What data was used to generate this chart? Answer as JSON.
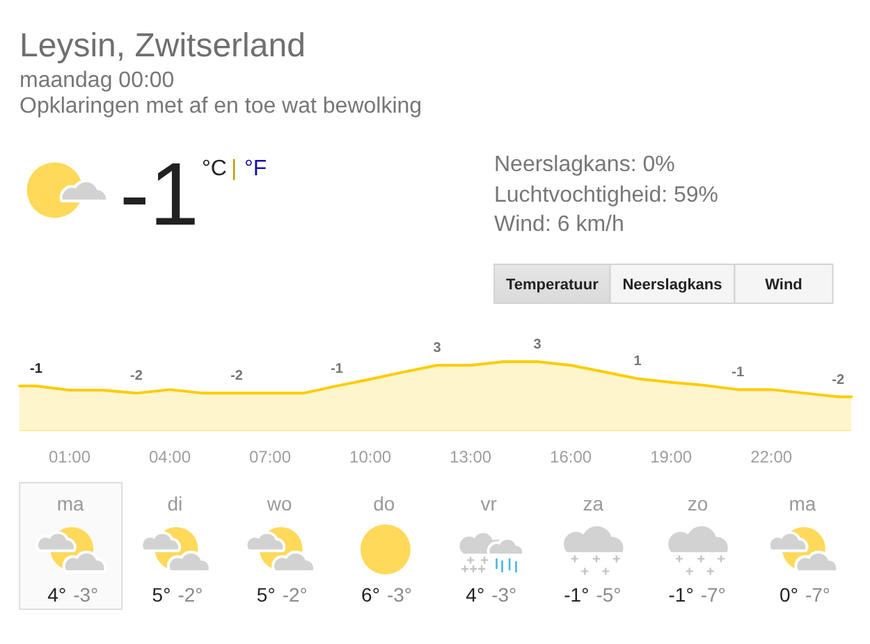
{
  "chart_data": [
    {
      "type": "other",
      "title": "Leysin, Zwitserland",
      "subtitle": "maandag 00:00",
      "annotations": [
        "Opklaringen met af en toe wat bewolking",
        "-1",
        "°C",
        "|",
        "°F",
        "Neerslagkans: 0%",
        "Luchtvochtigheid: 59%",
        "Wind: 6 km/h",
        "Temperatuur",
        "Neerslagkans",
        "Wind"
      ]
    },
    {
      "type": "area",
      "x": [
        -0.5,
        0,
        1,
        2,
        3,
        4,
        5,
        6,
        7,
        8,
        9,
        10,
        11,
        12,
        13,
        14,
        15,
        16,
        17,
        18,
        19,
        20,
        21,
        22,
        23,
        24,
        24.4
      ],
      "values": [
        -0.6,
        -0.6,
        -1.3,
        -1.3,
        -1.8,
        -1.2,
        -1.8,
        -1.8,
        -1.8,
        -1.8,
        -0.6,
        0.5,
        1.7,
        2.8,
        2.8,
        3.4,
        3.4,
        2.8,
        1.7,
        0.6,
        0.0,
        -0.5,
        -1.2,
        -1.2,
        -1.8,
        -2.4,
        -2.4
      ],
      "value_labels": [
        null,
        "-1",
        null,
        null,
        "-2",
        null,
        null,
        "-2",
        null,
        null,
        "-1",
        null,
        null,
        "3",
        null,
        null,
        "3",
        null,
        null,
        "1",
        null,
        null,
        "-1",
        null,
        null,
        "-2",
        null
      ],
      "color": "#ffcc00",
      "xlim": [
        -0.5,
        24.4
      ],
      "xticks": [
        {
          "value": 1,
          "label": "01:00"
        },
        {
          "value": 4,
          "label": "04:00"
        },
        {
          "value": 7,
          "label": "07:00"
        },
        {
          "value": 10,
          "label": "10:00"
        },
        {
          "value": 13,
          "label": "13:00"
        },
        {
          "value": 16,
          "label": "16:00"
        },
        {
          "value": 19,
          "label": "19:00"
        },
        {
          "value": 22,
          "label": "22:00"
        }
      ],
      "tick_labels": "x"
    },
    {
      "type": "other",
      "categories": [
        "ma",
        "di",
        "wo",
        "do",
        "vr",
        "za",
        "zo",
        "ma"
      ],
      "annotations": [
        "4°",
        "-3°",
        "5°",
        "-2°",
        "5°",
        "-2°",
        "6°",
        "-3°",
        "4°",
        "-3°",
        "-1°",
        "-5°",
        "-1°",
        "-7°",
        "0°",
        "-7°"
      ]
    }
  ]
}
